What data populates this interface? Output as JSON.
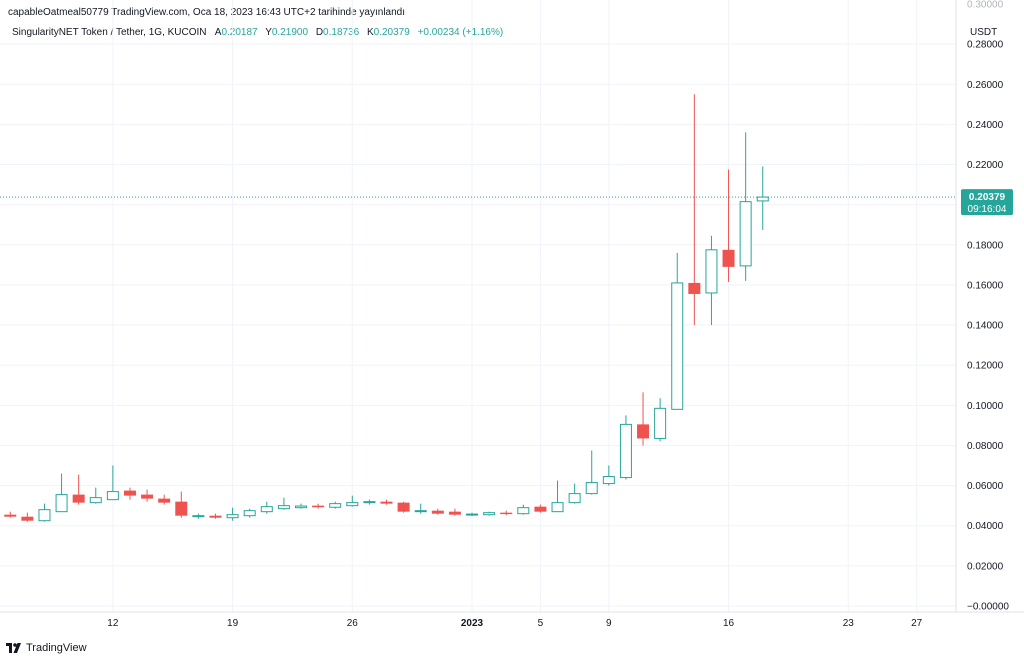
{
  "header": {
    "published_line": "capableOatmeal50779 TradingView.com, Oca 18, 2023 16:43 UTC+2 tarihinde yayınlandı"
  },
  "legend": {
    "symbol": "SingularityNET Token / Tether, 1G, KUCOIN",
    "open_label": "A",
    "open": "0.20187",
    "high_label": "Y",
    "high": "0.21900",
    "low_label": "D",
    "low": "0.18736",
    "close_label": "K",
    "close": "0.20379",
    "change": "+0.00234 (+1.16%)"
  },
  "footer": {
    "brand": "TradingView"
  },
  "colors": {
    "up": "#26a69a",
    "down": "#ef5350",
    "grid": "#f0f3fa",
    "axis_text": "#131722",
    "last_price": "#26a69a"
  },
  "chart_data": {
    "type": "candlestick",
    "title": "SingularityNET Token / Tether, 1G, KUCOIN",
    "currency": "USDT",
    "ylim": [
      -0.003,
      0.302
    ],
    "y_ticks": [
      "0.28000",
      "0.26000",
      "0.24000",
      "0.22000",
      "0.20000",
      "0.18000",
      "0.16000",
      "0.14000",
      "0.12000",
      "0.10000",
      "0.08000",
      "0.06000",
      "0.04000",
      "0.02000",
      "−0.00000"
    ],
    "y_tick_values": [
      0.28,
      0.26,
      0.24,
      0.22,
      0.2,
      0.18,
      0.16,
      0.14,
      0.12,
      0.1,
      0.08,
      0.06,
      0.04,
      0.02,
      0.0
    ],
    "top_partial_tick": "0.30000",
    "x_ticks": [
      {
        "label": "12",
        "day": 9
      },
      {
        "label": "19",
        "day": 16
      },
      {
        "label": "26",
        "day": 23
      },
      {
        "label": "2023",
        "day": 30
      },
      {
        "label": "5",
        "day": 34
      },
      {
        "label": "9",
        "day": 38
      },
      {
        "label": "16",
        "day": 45
      },
      {
        "label": "23",
        "day": 52
      },
      {
        "label": "27",
        "day": 56
      }
    ],
    "x_range_days": [
      2.4,
      58.3
    ],
    "last_price": {
      "value": "0.20379",
      "countdown": "09:16:04"
    },
    "candles": [
      {
        "date": "2022-12-03",
        "day": 3,
        "open": 0.0455,
        "high": 0.047,
        "low": 0.044,
        "close": 0.0445
      },
      {
        "date": "2022-12-04",
        "day": 4,
        "open": 0.0445,
        "high": 0.0465,
        "low": 0.042,
        "close": 0.0425
      },
      {
        "date": "2022-12-05",
        "day": 5,
        "open": 0.0425,
        "high": 0.051,
        "low": 0.042,
        "close": 0.048
      },
      {
        "date": "2022-12-06",
        "day": 6,
        "open": 0.047,
        "high": 0.066,
        "low": 0.047,
        "close": 0.0555
      },
      {
        "date": "2022-12-07",
        "day": 7,
        "open": 0.0555,
        "high": 0.0655,
        "low": 0.0505,
        "close": 0.0515
      },
      {
        "date": "2022-12-08",
        "day": 8,
        "open": 0.0515,
        "high": 0.059,
        "low": 0.051,
        "close": 0.054
      },
      {
        "date": "2022-12-09",
        "day": 9,
        "open": 0.053,
        "high": 0.07,
        "low": 0.053,
        "close": 0.057
      },
      {
        "date": "2022-12-10",
        "day": 10,
        "open": 0.0575,
        "high": 0.059,
        "low": 0.053,
        "close": 0.055
      },
      {
        "date": "2022-12-11",
        "day": 11,
        "open": 0.0555,
        "high": 0.058,
        "low": 0.052,
        "close": 0.0535
      },
      {
        "date": "2022-12-12",
        "day": 12,
        "open": 0.0535,
        "high": 0.0555,
        "low": 0.0505,
        "close": 0.0515
      },
      {
        "date": "2022-12-13",
        "day": 13,
        "open": 0.052,
        "high": 0.057,
        "low": 0.044,
        "close": 0.045
      },
      {
        "date": "2022-12-14",
        "day": 14,
        "open": 0.0445,
        "high": 0.046,
        "low": 0.0435,
        "close": 0.045
      },
      {
        "date": "2022-12-15",
        "day": 15,
        "open": 0.045,
        "high": 0.046,
        "low": 0.0435,
        "close": 0.044
      },
      {
        "date": "2022-12-16",
        "day": 16,
        "open": 0.044,
        "high": 0.049,
        "low": 0.0425,
        "close": 0.0455
      },
      {
        "date": "2022-12-17",
        "day": 17,
        "open": 0.045,
        "high": 0.0485,
        "low": 0.044,
        "close": 0.0475
      },
      {
        "date": "2022-12-18",
        "day": 18,
        "open": 0.047,
        "high": 0.052,
        "low": 0.046,
        "close": 0.0495
      },
      {
        "date": "2022-12-19",
        "day": 19,
        "open": 0.0485,
        "high": 0.054,
        "low": 0.048,
        "close": 0.05
      },
      {
        "date": "2022-12-20",
        "day": 20,
        "open": 0.049,
        "high": 0.051,
        "low": 0.0485,
        "close": 0.0498
      },
      {
        "date": "2022-12-21",
        "day": 21,
        "open": 0.05,
        "high": 0.051,
        "low": 0.0485,
        "close": 0.0492
      },
      {
        "date": "2022-12-22",
        "day": 22,
        "open": 0.0492,
        "high": 0.052,
        "low": 0.0485,
        "close": 0.051
      },
      {
        "date": "2022-12-23",
        "day": 23,
        "open": 0.05,
        "high": 0.055,
        "low": 0.0495,
        "close": 0.0515
      },
      {
        "date": "2022-12-24",
        "day": 24,
        "open": 0.0515,
        "high": 0.053,
        "low": 0.0505,
        "close": 0.052
      },
      {
        "date": "2022-12-25",
        "day": 25,
        "open": 0.052,
        "high": 0.053,
        "low": 0.0505,
        "close": 0.051
      },
      {
        "date": "2022-12-26",
        "day": 26,
        "open": 0.0515,
        "high": 0.052,
        "low": 0.0465,
        "close": 0.047
      },
      {
        "date": "2022-12-27",
        "day": 27,
        "open": 0.047,
        "high": 0.051,
        "low": 0.046,
        "close": 0.0475
      },
      {
        "date": "2022-12-28",
        "day": 28,
        "open": 0.0475,
        "high": 0.0485,
        "low": 0.0455,
        "close": 0.046
      },
      {
        "date": "2022-12-29",
        "day": 29,
        "open": 0.047,
        "high": 0.0485,
        "low": 0.045,
        "close": 0.0455
      },
      {
        "date": "2022-12-30",
        "day": 30,
        "open": 0.0455,
        "high": 0.0465,
        "low": 0.0448,
        "close": 0.0458
      },
      {
        "date": "2022-12-31",
        "day": 31,
        "open": 0.0455,
        "high": 0.047,
        "low": 0.045,
        "close": 0.0465
      },
      {
        "date": "2023-01-01",
        "day": 32,
        "open": 0.0465,
        "high": 0.0475,
        "low": 0.0452,
        "close": 0.0458
      },
      {
        "date": "2023-01-02",
        "day": 33,
        "open": 0.046,
        "high": 0.0505,
        "low": 0.0455,
        "close": 0.049
      },
      {
        "date": "2023-01-03",
        "day": 34,
        "open": 0.0495,
        "high": 0.0505,
        "low": 0.0465,
        "close": 0.047
      },
      {
        "date": "2023-01-04",
        "day": 35,
        "open": 0.047,
        "high": 0.0625,
        "low": 0.047,
        "close": 0.0515
      },
      {
        "date": "2023-01-05",
        "day": 36,
        "open": 0.0515,
        "high": 0.061,
        "low": 0.051,
        "close": 0.056
      },
      {
        "date": "2023-01-06",
        "day": 37,
        "open": 0.056,
        "high": 0.0775,
        "low": 0.0555,
        "close": 0.0615
      },
      {
        "date": "2023-01-07",
        "day": 38,
        "open": 0.061,
        "high": 0.07,
        "low": 0.06,
        "close": 0.0645
      },
      {
        "date": "2023-01-08",
        "day": 39,
        "open": 0.064,
        "high": 0.095,
        "low": 0.063,
        "close": 0.0905
      },
      {
        "date": "2023-01-09",
        "day": 40,
        "open": 0.0905,
        "high": 0.1065,
        "low": 0.08,
        "close": 0.0835
      },
      {
        "date": "2023-01-10",
        "day": 41,
        "open": 0.0835,
        "high": 0.1035,
        "low": 0.082,
        "close": 0.0985
      },
      {
        "date": "2023-01-11",
        "day": 42,
        "open": 0.098,
        "high": 0.176,
        "low": 0.098,
        "close": 0.161
      },
      {
        "date": "2023-01-12",
        "day": 43,
        "open": 0.161,
        "high": 0.255,
        "low": 0.14,
        "close": 0.1555
      },
      {
        "date": "2023-01-13",
        "day": 44,
        "open": 0.156,
        "high": 0.1845,
        "low": 0.14,
        "close": 0.1775
      },
      {
        "date": "2023-01-14",
        "day": 45,
        "open": 0.1775,
        "high": 0.2175,
        "low": 0.1615,
        "close": 0.169
      },
      {
        "date": "2023-01-15",
        "day": 46,
        "open": 0.1695,
        "high": 0.236,
        "low": 0.162,
        "close": 0.2015
      },
      {
        "date": "2023-01-16",
        "day": 47,
        "open": 0.20187,
        "high": 0.219,
        "low": 0.18736,
        "close": 0.20379
      }
    ]
  }
}
